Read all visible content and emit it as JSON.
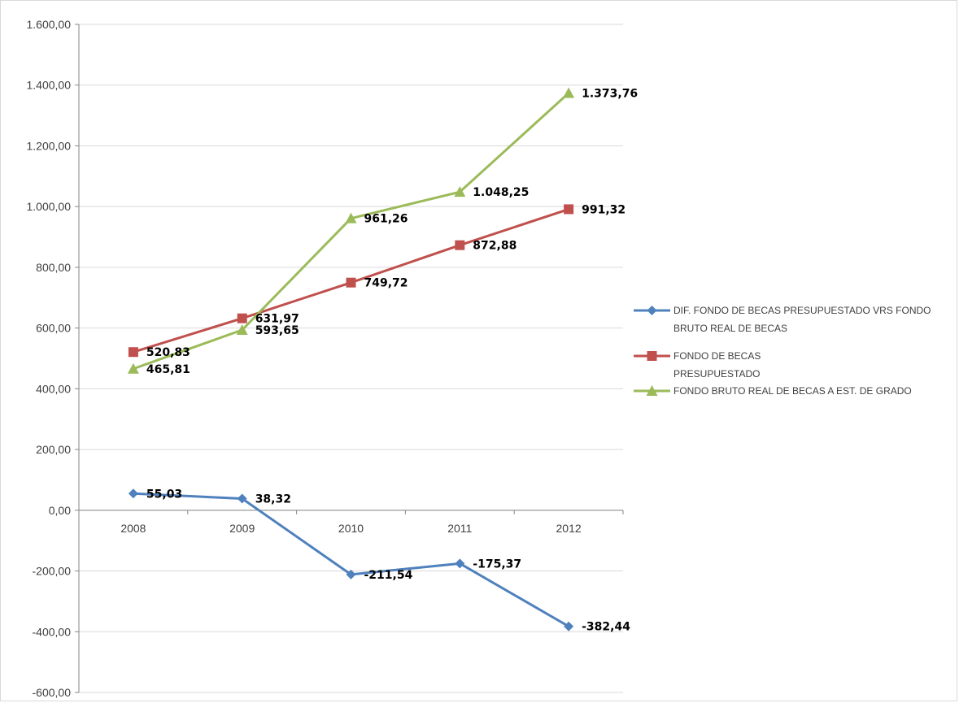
{
  "chart_data": {
    "type": "line",
    "title": "",
    "xlabel": "",
    "ylabel": "",
    "categories": [
      "2008",
      "2009",
      "2010",
      "2011",
      "2012"
    ],
    "ylim": [
      -600,
      1600
    ],
    "ytick_step": 200,
    "y_tick_labels": [
      "-600,00",
      "-400,00",
      "-200,00",
      "0,00",
      "200,00",
      "400,00",
      "600,00",
      "800,00",
      "1.000,00",
      "1.200,00",
      "1.400,00",
      "1.600,00"
    ],
    "grid": true,
    "legend_position": "right",
    "series": [
      {
        "name_lines": [
          "DIF. FONDO DE BECAS PRESUPUESTADO VRS FONDO",
          "BRUTO REAL DE BECAS"
        ],
        "color": "#4f81bd",
        "marker": "diamond",
        "values": [
          55.03,
          38.32,
          -211.54,
          -175.37,
          -382.44
        ],
        "labels": [
          "55,03",
          "38,32",
          "-211,54",
          "-175,37",
          "-382,44"
        ]
      },
      {
        "name_lines": [
          "FONDO DE BECAS",
          "PRESUPUESTADO"
        ],
        "color": "#c0504d",
        "marker": "square",
        "values": [
          520.83,
          631.97,
          749.72,
          872.88,
          991.32
        ],
        "labels": [
          "520,83",
          "631,97",
          "749,72",
          "872,88",
          "991,32"
        ]
      },
      {
        "name_lines": [
          "FONDO BRUTO REAL DE BECAS A EST. DE GRADO"
        ],
        "color": "#9bbb59",
        "marker": "triangle",
        "values": [
          465.81,
          593.65,
          961.26,
          1048.25,
          1373.76
        ],
        "labels": [
          "465,81",
          "593,65",
          "961,26",
          "1.048,25",
          "1.373,76"
        ]
      }
    ]
  }
}
